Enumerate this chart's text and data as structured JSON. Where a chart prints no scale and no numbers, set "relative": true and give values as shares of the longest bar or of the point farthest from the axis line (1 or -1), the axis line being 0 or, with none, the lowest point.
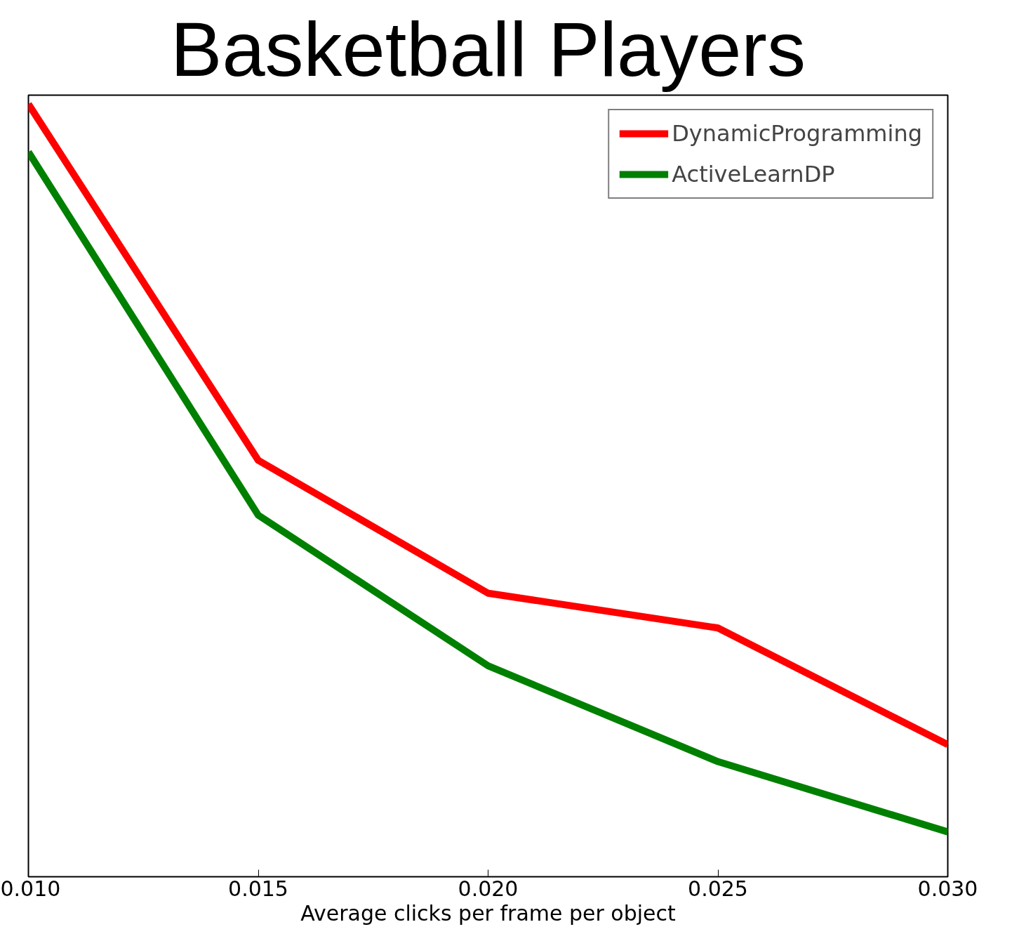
{
  "chart_data": {
    "type": "line",
    "title": "Basketball Players",
    "xlabel": "Average clicks per frame per object",
    "relative": true,
    "x": [
      0.01,
      0.015,
      0.02,
      0.025,
      0.03
    ],
    "xlim": [
      0.01,
      0.03
    ],
    "xticks": [
      {
        "value": 0.01,
        "label": "0.010"
      },
      {
        "value": 0.015,
        "label": "0.015"
      },
      {
        "value": 0.02,
        "label": "0.020"
      },
      {
        "value": 0.025,
        "label": "0.025"
      },
      {
        "value": 0.03,
        "label": "0.030"
      }
    ],
    "series": [
      {
        "name": "DynamicProgramming",
        "color": "#ff0000",
        "values": [
          1.0,
          0.539,
          0.367,
          0.322,
          0.171
        ]
      },
      {
        "name": "ActiveLearnDP",
        "color": "#008000",
        "values": [
          0.938,
          0.468,
          0.273,
          0.149,
          0.058
        ]
      }
    ],
    "grid": false,
    "legend": "top right",
    "line_style": "solid",
    "marker": "none",
    "tick_labels": "x"
  }
}
